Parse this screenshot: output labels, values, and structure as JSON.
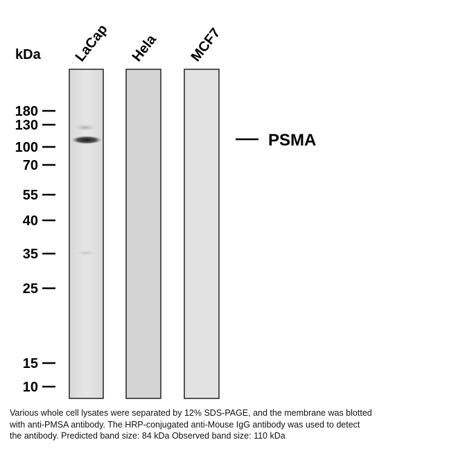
{
  "blot": {
    "unit": "kDa",
    "lanes": [
      "LaCap",
      "Hela",
      "MCF7"
    ],
    "markers": [
      "180",
      "130",
      "100",
      "70",
      "55",
      "40",
      "35",
      "25",
      "15",
      "10"
    ],
    "band_label": "PSMA"
  },
  "caption": {
    "lines": [
      "Various whole cell lysates were separated by 12% SDS-PAGE, and the membrane was blotted",
      "with anti-PMSA antibody. The HRP-conjugated anti-Mouse IgG antibody was used to detect",
      "the antibody.  Predicted band size: 84 kDa Observed band size: 110 kDa"
    ]
  }
}
